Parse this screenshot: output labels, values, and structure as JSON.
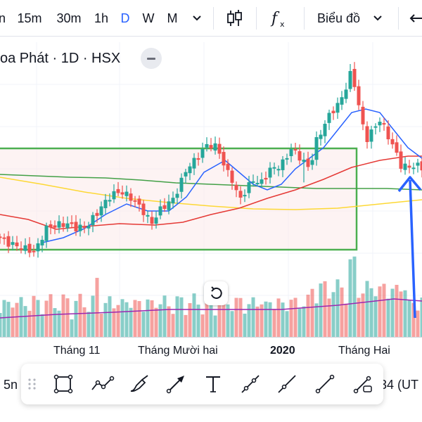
{
  "toolbar": {
    "intervals": [
      "n",
      "15m",
      "30m",
      "1h",
      "D",
      "W",
      "M"
    ],
    "active_interval": "D",
    "more_intervals_icon": "chevron-down-icon",
    "candles_icon": "candlestick-icon",
    "indicators_icon": "fx-icon",
    "chart_type_label": "Biểu đồ",
    "chart_type_icon": "chevron-down-icon",
    "right_icon": "arrow-left-icon"
  },
  "legend": {
    "title": "oa Phát · 1D · HSX",
    "collapse_icon": "minus-icon"
  },
  "chart": {
    "reset_icon": "reset-rotate-icon",
    "colors": {
      "up": "#26a69a",
      "down": "#ef5350",
      "ma_fast": "#2962ff",
      "ma_mid": "#e53935",
      "ma_slow": "#43a047",
      "ma_long": "#fdd835",
      "volume_ma": "#9c27b0",
      "box": "#4caf50",
      "arrow": "#2962ff"
    }
  },
  "time_axis": {
    "labels": [
      "Tháng 11",
      "Tháng Mười hai",
      "2020",
      "Tháng Hai"
    ]
  },
  "bottom": {
    "left_text": "5n",
    "right_text": "34 (UT",
    "drawing_tools": [
      "drag-handle-icon",
      "rectangle-icon",
      "path-icon",
      "brush-icon",
      "arrow-tool-icon",
      "text-icon",
      "ray-icon",
      "extended-line-icon",
      "trend-line-icon",
      "info-line-icon"
    ]
  }
}
